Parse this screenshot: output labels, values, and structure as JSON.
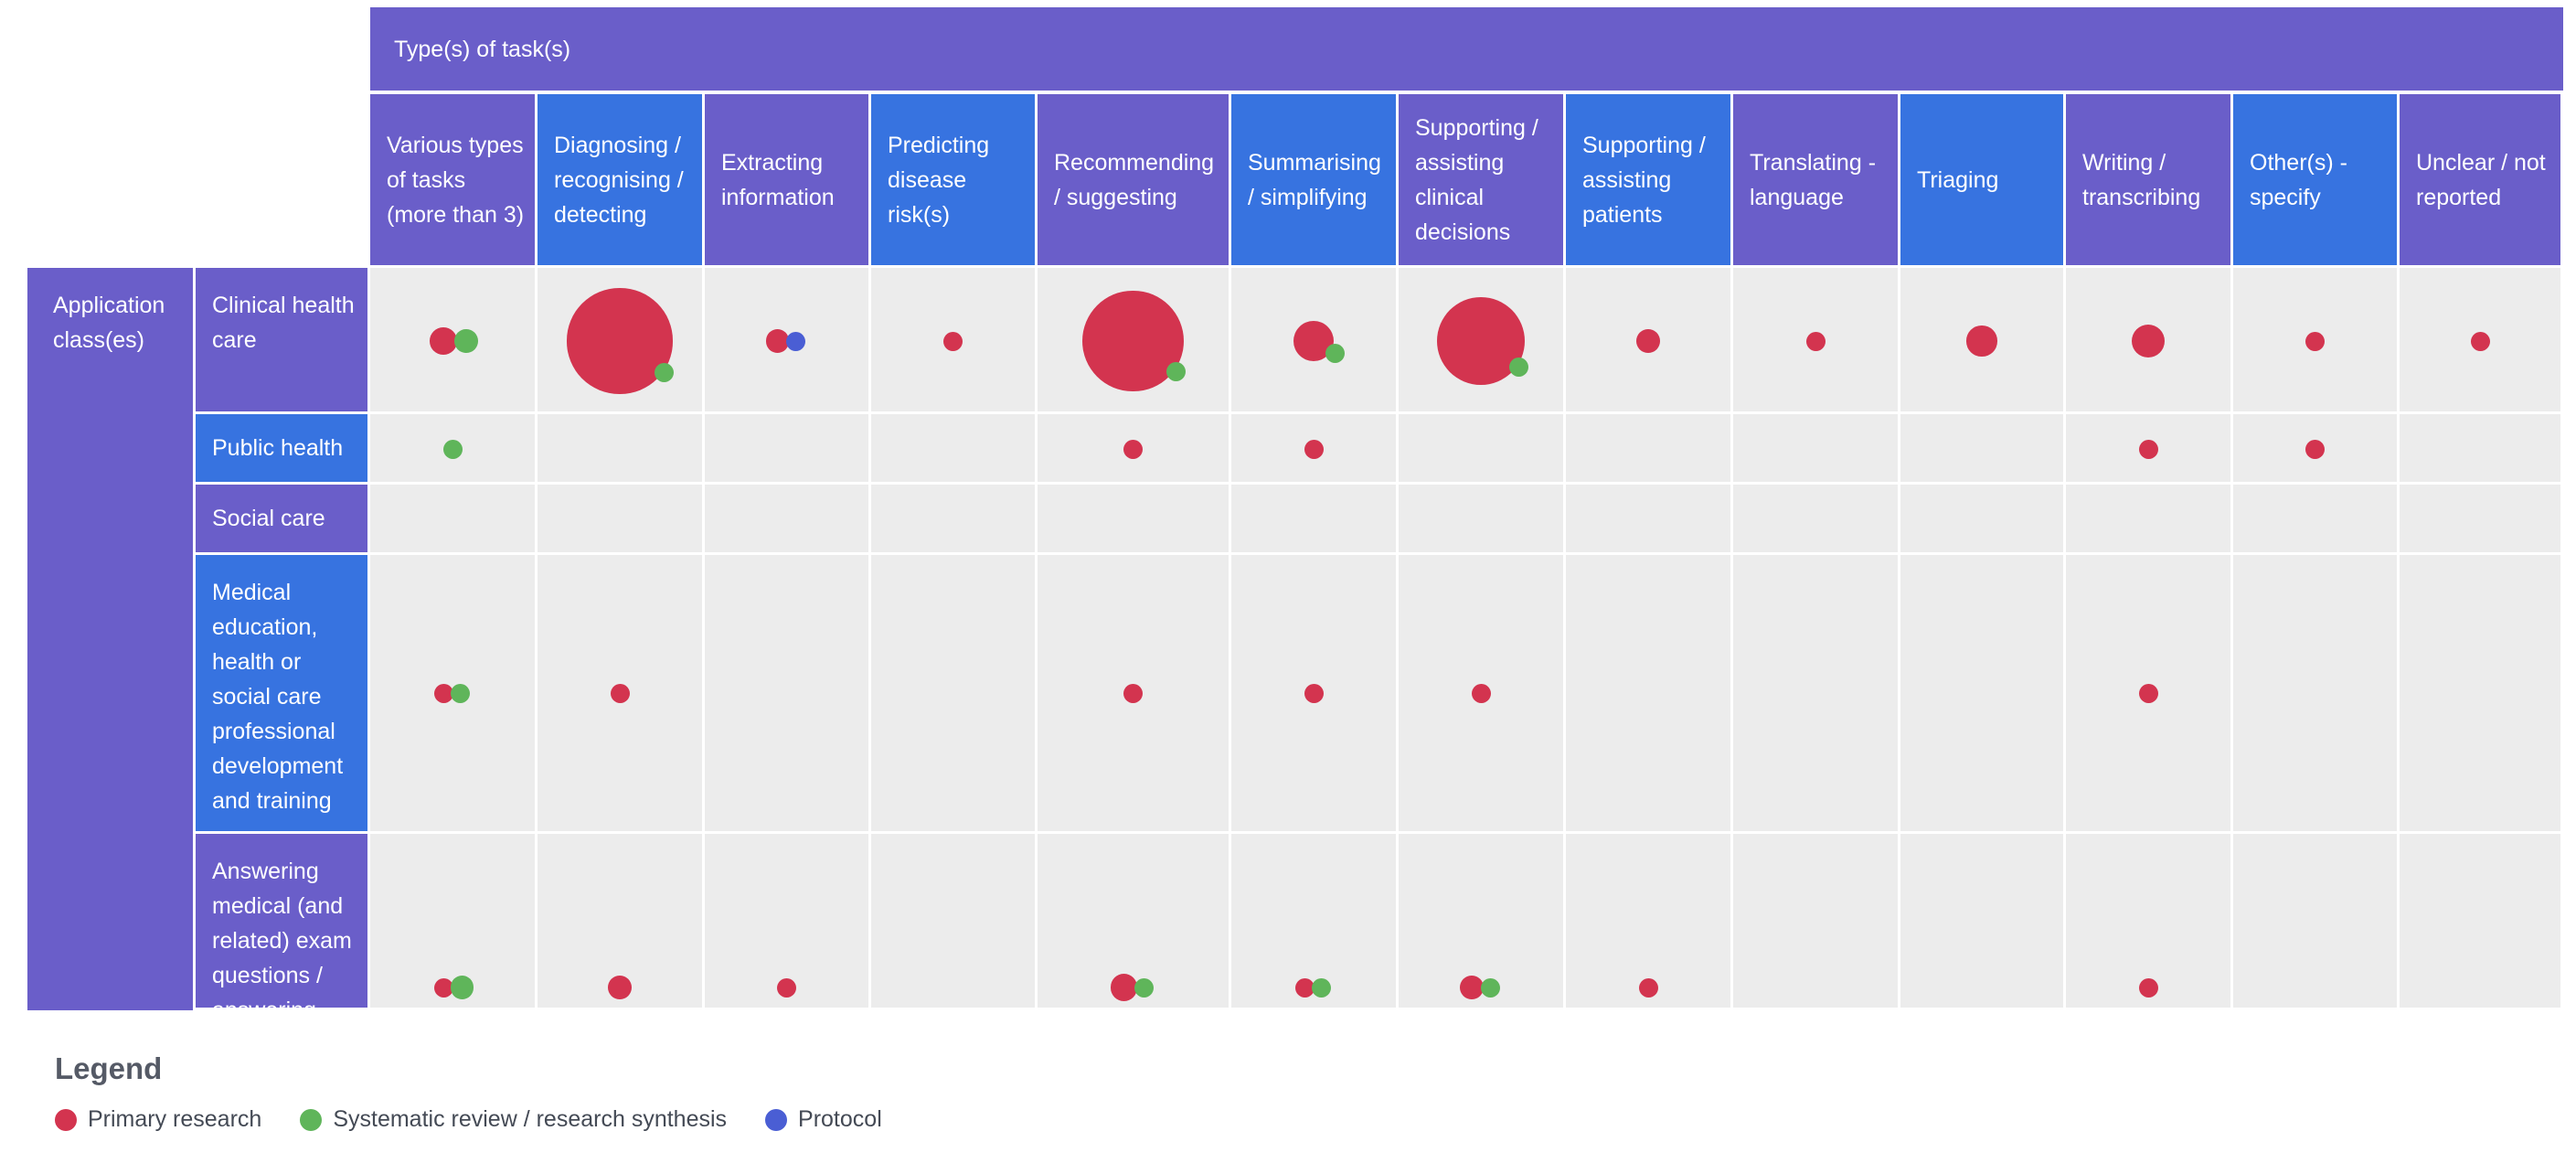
{
  "colors": {
    "header_purple": "#6a5ec9",
    "header_blue": "#3773e0",
    "cell_bg": "#ececec",
    "primary": "#d3344f",
    "systematic": "#5fb55a",
    "protocol": "#4a5ed4"
  },
  "chart_data": {
    "type": "bubble-matrix",
    "title": "Type(s) of task(s)",
    "row_axis_label": "Application class(es)",
    "columns": [
      "Various types of tasks (more than 3)",
      "Diagnosing / recognising / detecting",
      "Extracting information",
      "Predicting disease risk(s)",
      "Recommending / suggesting",
      "Summarising / simplifying",
      "Supporting / assisting clinical decisions",
      "Supporting / assisting patients",
      "Translating - language",
      "Triaging",
      "Writing / transcribing",
      "Other(s) - specify",
      "Unclear / not reported"
    ],
    "rows": [
      "Clinical health care",
      "Public health",
      "Social care",
      "Medical education, health or social care professional development and training",
      "Answering medical (and related) exam questions / answering"
    ],
    "series": [
      {
        "name": "Primary research",
        "key": "primary"
      },
      {
        "name": "Systematic review / research synthesis",
        "key": "systematic"
      },
      {
        "name": "Protocol",
        "key": "protocol"
      }
    ],
    "points": [
      {
        "row": 0,
        "col": 0,
        "series": "primary",
        "value": 4
      },
      {
        "row": 0,
        "col": 0,
        "series": "systematic",
        "value": 3
      },
      {
        "row": 0,
        "col": 1,
        "series": "primary",
        "value": 60
      },
      {
        "row": 0,
        "col": 1,
        "series": "systematic",
        "value": 2
      },
      {
        "row": 0,
        "col": 2,
        "series": "primary",
        "value": 3
      },
      {
        "row": 0,
        "col": 2,
        "series": "protocol",
        "value": 2
      },
      {
        "row": 0,
        "col": 3,
        "series": "primary",
        "value": 2
      },
      {
        "row": 0,
        "col": 4,
        "series": "primary",
        "value": 55
      },
      {
        "row": 0,
        "col": 4,
        "series": "systematic",
        "value": 2
      },
      {
        "row": 0,
        "col": 5,
        "series": "primary",
        "value": 9
      },
      {
        "row": 0,
        "col": 5,
        "series": "systematic",
        "value": 2
      },
      {
        "row": 0,
        "col": 6,
        "series": "primary",
        "value": 42
      },
      {
        "row": 0,
        "col": 6,
        "series": "systematic",
        "value": 2
      },
      {
        "row": 0,
        "col": 7,
        "series": "primary",
        "value": 3
      },
      {
        "row": 0,
        "col": 8,
        "series": "primary",
        "value": 2
      },
      {
        "row": 0,
        "col": 9,
        "series": "primary",
        "value": 5
      },
      {
        "row": 0,
        "col": 10,
        "series": "primary",
        "value": 6
      },
      {
        "row": 0,
        "col": 11,
        "series": "primary",
        "value": 2
      },
      {
        "row": 0,
        "col": 12,
        "series": "primary",
        "value": 2
      },
      {
        "row": 1,
        "col": 0,
        "series": "systematic",
        "value": 2
      },
      {
        "row": 1,
        "col": 4,
        "series": "primary",
        "value": 2
      },
      {
        "row": 1,
        "col": 5,
        "series": "primary",
        "value": 2
      },
      {
        "row": 1,
        "col": 10,
        "series": "primary",
        "value": 2
      },
      {
        "row": 1,
        "col": 11,
        "series": "primary",
        "value": 2
      },
      {
        "row": 3,
        "col": 0,
        "series": "primary",
        "value": 2
      },
      {
        "row": 3,
        "col": 0,
        "series": "systematic",
        "value": 2
      },
      {
        "row": 3,
        "col": 1,
        "series": "primary",
        "value": 2
      },
      {
        "row": 3,
        "col": 4,
        "series": "primary",
        "value": 2
      },
      {
        "row": 3,
        "col": 5,
        "series": "primary",
        "value": 2
      },
      {
        "row": 3,
        "col": 6,
        "series": "primary",
        "value": 2
      },
      {
        "row": 3,
        "col": 10,
        "series": "primary",
        "value": 2
      },
      {
        "row": 4,
        "col": 0,
        "series": "primary",
        "value": 2
      },
      {
        "row": 4,
        "col": 0,
        "series": "systematic",
        "value": 3
      },
      {
        "row": 4,
        "col": 1,
        "series": "primary",
        "value": 3
      },
      {
        "row": 4,
        "col": 2,
        "series": "primary",
        "value": 2
      },
      {
        "row": 4,
        "col": 4,
        "series": "primary",
        "value": 4
      },
      {
        "row": 4,
        "col": 4,
        "series": "systematic",
        "value": 2
      },
      {
        "row": 4,
        "col": 5,
        "series": "primary",
        "value": 2
      },
      {
        "row": 4,
        "col": 5,
        "series": "systematic",
        "value": 2
      },
      {
        "row": 4,
        "col": 6,
        "series": "primary",
        "value": 3
      },
      {
        "row": 4,
        "col": 6,
        "series": "systematic",
        "value": 2
      },
      {
        "row": 4,
        "col": 7,
        "series": "primary",
        "value": 2
      },
      {
        "row": 4,
        "col": 10,
        "series": "primary",
        "value": 2
      }
    ]
  },
  "legend": {
    "title": "Legend",
    "items": [
      {
        "label": "Primary research",
        "color": "#d3344f"
      },
      {
        "label": "Systematic review / research synthesis",
        "color": "#5fb55a"
      },
      {
        "label": "Protocol",
        "color": "#4a5ed4"
      }
    ]
  }
}
